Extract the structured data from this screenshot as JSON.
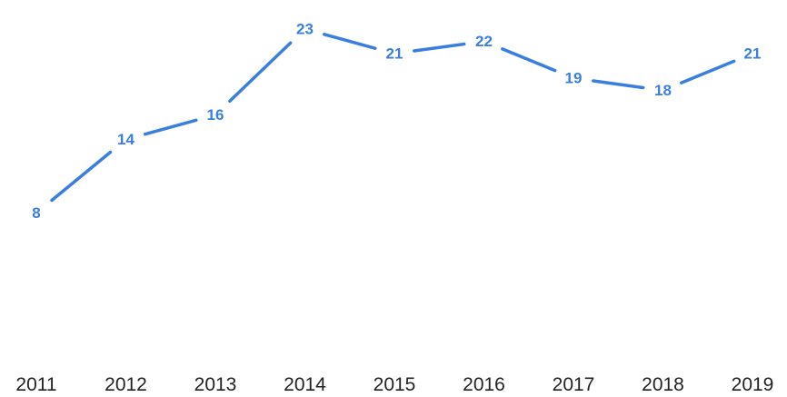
{
  "chart_data": {
    "type": "line",
    "categories": [
      "2011",
      "2012",
      "2013",
      "2014",
      "2015",
      "2016",
      "2017",
      "2018",
      "2019"
    ],
    "series": [
      {
        "values": [
          8,
          14,
          16,
          23,
          21,
          22,
          19,
          18,
          21
        ],
        "color": "#3a7fe0"
      }
    ],
    "data_labels": [
      "8",
      "14",
      "16",
      "23",
      "21",
      "22",
      "19",
      "18",
      "21"
    ],
    "title": "",
    "xlabel": "",
    "ylabel": "",
    "ylim": [
      0,
      25
    ],
    "grid": false,
    "legend": "none",
    "colors": {
      "line": "#3a7fe0",
      "data_label": "#3a7fe0",
      "tick_label": "#222222"
    }
  }
}
